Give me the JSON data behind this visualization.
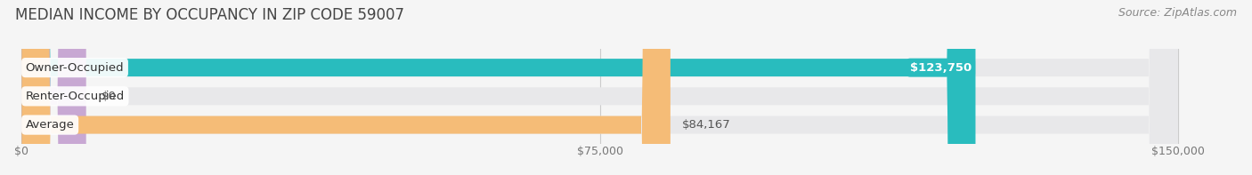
{
  "title": "MEDIAN INCOME BY OCCUPANCY IN ZIP CODE 59007",
  "source": "Source: ZipAtlas.com",
  "categories": [
    "Owner-Occupied",
    "Renter-Occupied",
    "Average"
  ],
  "values": [
    123750,
    0,
    84167
  ],
  "bar_colors": [
    "#29BCBE",
    "#C8A8D3",
    "#F5BC77"
  ],
  "bg_bar_color": "#e8e8ea",
  "background_color": "#f5f5f5",
  "value_labels": [
    "$123,750",
    "$0",
    "$84,167"
  ],
  "xlim": [
    0,
    150000
  ],
  "xticks": [
    0,
    75000,
    150000
  ],
  "xtick_labels": [
    "$0",
    "$75,000",
    "$150,000"
  ],
  "bar_height": 0.62,
  "title_fontsize": 12,
  "label_fontsize": 9.5,
  "source_fontsize": 9
}
